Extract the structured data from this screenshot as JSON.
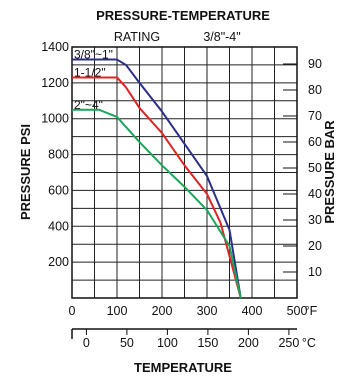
{
  "chart_data": {
    "type": "line",
    "title": "PRESSURE-TEMPERATURE",
    "subtitle_left": "RATING",
    "subtitle_right": "3/8\"-4\"",
    "ylabel": "PRESSURE PSI",
    "y2label": "PRESSURE BAR",
    "xlabel": "TEMPERATURE",
    "x_unit": "°F",
    "x2_unit": "°C",
    "xlim": [
      0,
      500
    ],
    "ylim": [
      0,
      1400
    ],
    "x2lim": [
      -17.78,
      260
    ],
    "y2lim": [
      0,
      96.53
    ],
    "x_ticks": [
      0,
      100,
      200,
      300,
      400,
      500
    ],
    "y_ticks": [
      200,
      400,
      600,
      800,
      1000,
      1200,
      1400
    ],
    "x2_ticks": [
      0,
      50,
      100,
      150,
      200,
      250
    ],
    "y2_ticks": [
      10,
      20,
      30,
      40,
      50,
      60,
      70,
      80,
      90
    ],
    "grid": true,
    "series": [
      {
        "name": "3/8\"~1\"",
        "color": "#2b2f86",
        "x": [
          0,
          100,
          120,
          150,
          200,
          250,
          300,
          350,
          375
        ],
        "y": [
          1330,
          1330,
          1300,
          1200,
          1040,
          860,
          680,
          380,
          0
        ]
      },
      {
        "name": "1-1/2\"",
        "color": "#e02424",
        "x": [
          0,
          100,
          120,
          150,
          200,
          250,
          300,
          330,
          375
        ],
        "y": [
          1230,
          1230,
          1175,
          1060,
          920,
          740,
          580,
          420,
          0
        ]
      },
      {
        "name": "2\"~4\"",
        "color": "#1aa65a",
        "x": [
          0,
          60,
          100,
          150,
          200,
          250,
          300,
          350,
          375
        ],
        "y": [
          1050,
          1050,
          1010,
          870,
          740,
          620,
          490,
          290,
          0
        ]
      }
    ]
  }
}
